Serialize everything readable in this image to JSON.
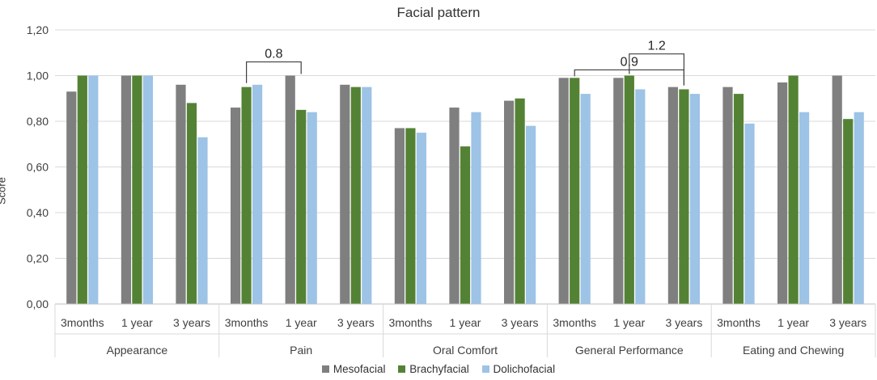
{
  "chart_data": {
    "type": "bar",
    "title": "Facial pattern",
    "xlabel": "",
    "ylabel": "Score",
    "ylim": [
      0,
      1.2
    ],
    "yticks": [
      "0,00",
      "0,20",
      "0,40",
      "0,60",
      "0,80",
      "1,00",
      "1,20"
    ],
    "groups": [
      "Appearance",
      "Pain",
      "Oral Comfort",
      "General Performance",
      "Eating and Chewing"
    ],
    "subcategories": [
      "3months",
      "1 year",
      "3 years"
    ],
    "series": [
      {
        "name": "Mesofacial",
        "color": "#7f7f7f",
        "values": [
          0.93,
          1.0,
          0.96,
          0.86,
          1.0,
          0.96,
          0.77,
          0.86,
          0.89,
          0.99,
          0.99,
          0.95,
          0.95,
          0.97,
          1.0
        ]
      },
      {
        "name": "Brachyfacial",
        "color": "#548235",
        "values": [
          1.0,
          1.0,
          0.88,
          0.95,
          0.85,
          0.95,
          0.77,
          0.69,
          0.9,
          0.99,
          1.0,
          0.94,
          0.92,
          1.0,
          0.81
        ]
      },
      {
        "name": "Dolichofacial",
        "color": "#9dc3e6",
        "values": [
          1.0,
          1.0,
          0.73,
          0.96,
          0.84,
          0.95,
          0.75,
          0.84,
          0.78,
          0.92,
          0.94,
          0.92,
          0.79,
          0.84,
          0.84
        ]
      }
    ],
    "annotations": [
      {
        "label": "0.8",
        "from_group": 1,
        "from_sub": 0,
        "to_group": 1,
        "to_sub": 1,
        "level": 1.06
      },
      {
        "label": "0.9",
        "from_group": 3,
        "from_sub": 0,
        "to_group": 3,
        "to_sub": 2,
        "level": 1.025
      },
      {
        "label": "1.2",
        "from_group": 3,
        "from_sub": 1,
        "to_group": 3,
        "to_sub": 2,
        "level": 1.095
      }
    ]
  }
}
